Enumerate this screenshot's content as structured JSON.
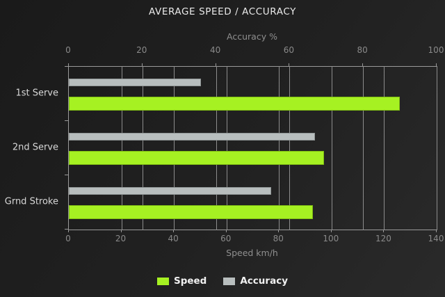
{
  "chart_data": {
    "type": "bar",
    "orientation": "horizontal",
    "title": "AVERAGE SPEED / ACCURACY",
    "categories": [
      "1st Serve",
      "2nd Serve",
      "Grnd Stroke"
    ],
    "series": [
      {
        "name": "Speed",
        "axis": "bottom",
        "values": [
          126,
          97,
          93
        ],
        "color": "#a6f122"
      },
      {
        "name": "Accuracy",
        "axis": "top",
        "values": [
          36,
          67,
          55
        ],
        "color": "#b8bebe"
      }
    ],
    "top_axis": {
      "label": "Accuracy %",
      "min": 0,
      "max": 100,
      "ticks": [
        0,
        20,
        40,
        60,
        80,
        100
      ]
    },
    "bottom_axis": {
      "label": "Speed km/h",
      "min": 0,
      "max": 140,
      "ticks": [
        0,
        20,
        40,
        60,
        80,
        100,
        120,
        140
      ]
    },
    "grid": true,
    "legend_position": "bottom",
    "colors": {
      "background_top": "#1a1a1a",
      "background_bottom": "#2a2a2a",
      "gridline": "#8d8d8d",
      "tick_text": "#8a8a8a",
      "axis_label_text": "#8f8f8f",
      "category_text": "#d8d8d8",
      "title_text": "#eaeaea",
      "legend_text": "#f2f2f2"
    }
  }
}
